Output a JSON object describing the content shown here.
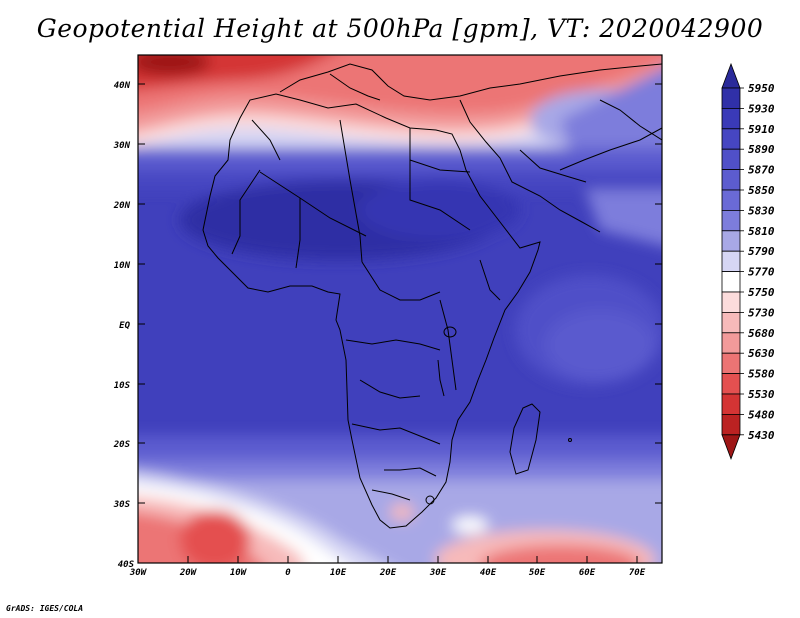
{
  "title": "Geopotential Height at 500hPa [gpm], VT: 2020042900",
  "credit": "GrADS: IGES/COLA",
  "map": {
    "lat_labels": [
      "40N",
      "30N",
      "20N",
      "10N",
      "EQ",
      "10S",
      "20S",
      "30S",
      "40S"
    ],
    "lon_labels": [
      "30W",
      "20W",
      "10W",
      "0",
      "10E",
      "20E",
      "30E",
      "40E",
      "50E",
      "60E",
      "70E"
    ],
    "region": "Africa"
  },
  "colorbar": {
    "levels": [
      "5950",
      "5930",
      "5910",
      "5890",
      "5870",
      "5850",
      "5830",
      "5810",
      "5790",
      "5770",
      "5750",
      "5730",
      "5680",
      "5630",
      "5580",
      "5530",
      "5480",
      "5430"
    ],
    "colors": [
      "#2a2a9a",
      "#3030a8",
      "#3a3ab8",
      "#4646c2",
      "#5050c8",
      "#5c5ccf",
      "#6a6ad6",
      "#7d7ddc",
      "#a8a8e6",
      "#d6d6f4",
      "#ffffff",
      "#fcdcdc",
      "#f7baba",
      "#f29a9a",
      "#ec7474",
      "#e45050",
      "#d43434",
      "#bb2222",
      "#9e1616"
    ]
  }
}
